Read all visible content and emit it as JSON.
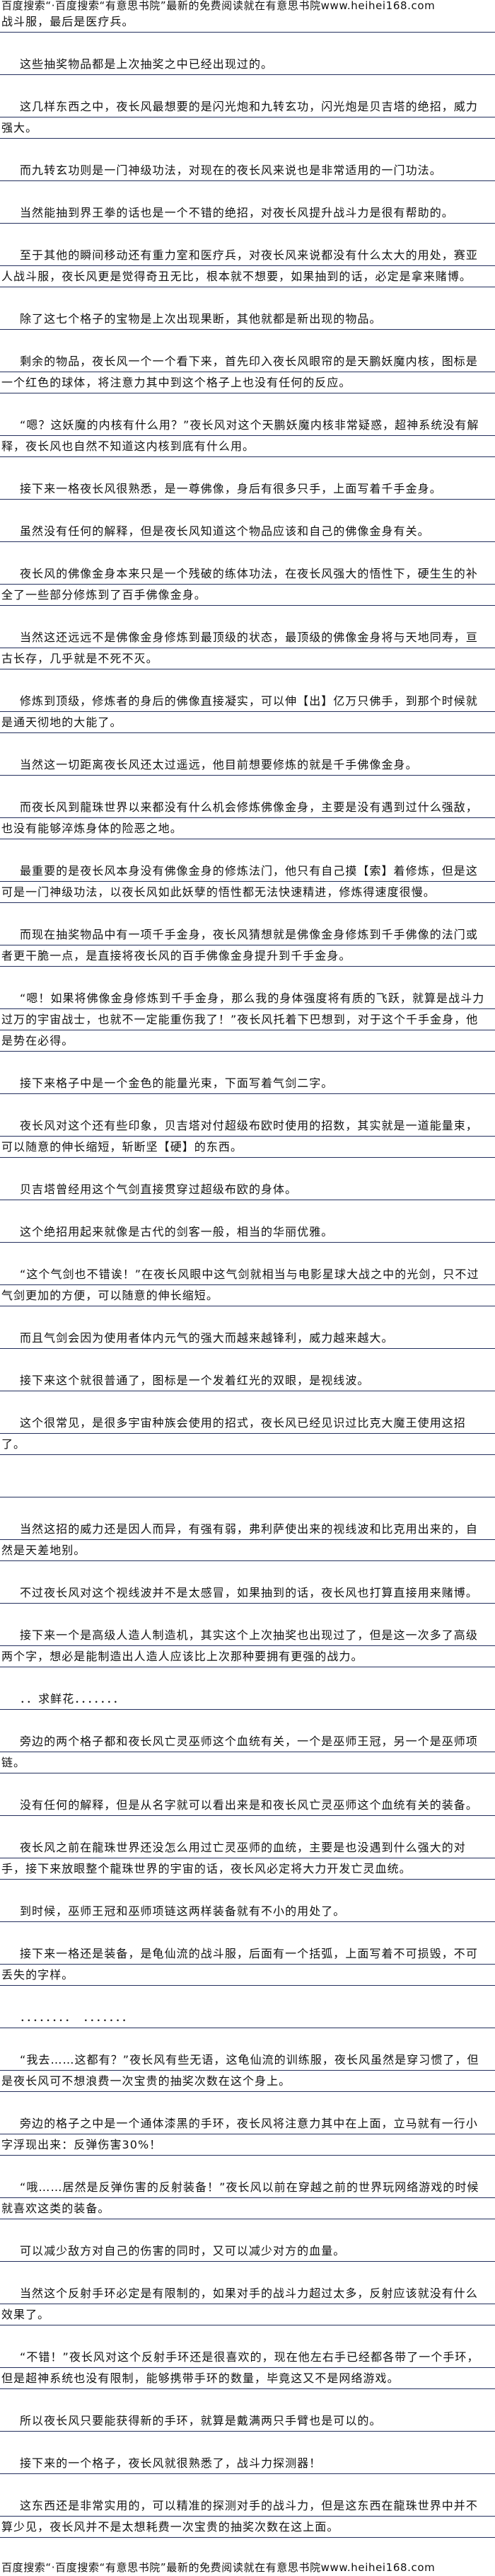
{
  "banner_top": "百度搜索“·百度搜索“有意思书院”最新的免费阅读就在有意思书院www.heihei168.com",
  "banner_bottom": "百度搜索“·百度搜索“有意思书院”最新的免费阅读就在有意思书院www.heihei168.com",
  "paragraphs": [
    "战斗服，最后是医疗兵。",
    "这些抽奖物品都是上次抽奖之中已经出现过的。",
    "这几样东西之中，夜长风最想要的是闪光炮和九转玄功，闪光炮是贝吉塔的绝招，威力强大。",
    "而九转玄功则是一门神级功法，对现在的夜长风来说也是非常适用的一门功法。",
    "当然能抽到界王拳的话也是一个不错的绝招，对夜长风提升战斗力是很有帮助的。",
    "至于其他的瞬间移动还有重力室和医疗兵，对夜长风来说都没有什么太大的用处，赛亚人战斗服，夜长风更是觉得奇丑无比，根本就不想要，如果抽到的话，必定是拿来赌博。",
    "除了这七个格子的宝物是上次出现果断，其他就都是新出现的物品。",
    "剩余的物品，夜长风一个一个看下来，首先印入夜长风眼帘的是天鹏妖魔内核，图标是一个红色的球体，将注意力其中到这个格子上也没有任何的反应。",
    "“嗯？这妖魔的内核有什么用？”夜长风对这个天鹏妖魔内核非常疑惑，超神系统没有解释，夜长风也自然不知道这内核到底有什么用。",
    "接下来一格夜长风很熟悉，是一尊佛像，身后有很多只手，上面写着千手金身。",
    "虽然没有任何的解释，但是夜长风知道这个物品应该和自己的佛像金身有关。",
    "夜长风的佛像金身本来只是一个残破的练体功法，在夜长风强大的悟性下，硬生生的补全了一些部分修炼到了百手佛像金身。",
    "当然这还远远不是佛像金身修炼到最顶级的状态，最顶级的佛像金身将与天地同寿，亘古长存，几乎就是不死不灭。",
    "修炼到顶级，修炼者的身后的佛像直接凝实，可以伸【出】亿万只佛手，到那个时候就是通天彻地的大能了。",
    "当然这一切距离夜长风还太过遥远，他目前想要修炼的就是千手佛像金身。",
    "而夜长风到龍珠世界以来都没有什么机会修炼佛像金身，主要是没有遇到过什么强敌，也没有能够淬炼身体的险恶之地。",
    "最重要的是夜长风本身没有佛像金身的修炼法门，他只有自己摸【索】着修炼，但是这可是一门神级功法，以夜长风如此妖孽的悟性都无法快速精进，修炼得速度很慢。",
    "而现在抽奖物品中有一项千手金身，夜长风猜想就是佛像金身修炼到千手佛像的法门或者更干脆一点，是直接将夜长风的百手佛像金身提升到千手金身。",
    "“嗯！如果将佛像金身修炼到千手金身，那么我的身体强度将有质的飞跃，就算是战斗力过万的宇宙战士，也就不一定能重伤我了！”夜长风托着下巴想到，对于这个千手金身，他是势在必得。",
    "接下来格子中是一个金色的能量光束，下面写着气剑二字。",
    "夜长风对这个还有些印象，贝吉塔对付超级布欧时使用的招数，其实就是一道能量束，可以随意的伸长缩短，斩断坚【硬】的东西。",
    "贝吉塔曾经用这个气剑直接贯穿过超级布欧的身体。",
    "这个绝招用起来就像是古代的剑客一般，相当的华丽优雅。",
    "“这个气剑也不错诶！”在夜长风眼中这气剑就相当与电影星球大战之中的光剑，只不过气剑更加的方便，可以随意的伸长缩短。",
    "而且气剑会因为使用者体内元气的强大而越来越锋利，威力越来越大。",
    "接下来这个就很普通了，图标是一个发着红光的双眼，是视线波。",
    "这个很常见，是很多宇宙种族会使用的招式，夜长风已经见识过比克大魔王使用这招了。",
    "",
    "当然这招的威力还是因人而异，有强有弱，弗利萨使出来的视线波和比克用出来的，自然是天差地别。",
    "不过夜长风对这个视线波并不是太感冒，如果抽到的话，夜长风也打算直接用来赌博。",
    "接下来一个是高级人造人制造机，其实这个上次抽奖也出现过了，但是这一次多了高级两个字，想必是能制造出人造人应该比上次那种要拥有更强的战力。",
    "．．求鲜花．．．．．．．",
    "旁边的两个格子都和夜长风亡灵巫师这个血统有关，一个是巫师王冠，另一个是巫师项链。",
    "没有任何的解释，但是从名字就可以看出来是和夜长风亡灵巫师这个血统有关的装备。",
    "夜长风之前在龍珠世界还没怎么用过亡灵巫师的血统，主要是也没遇到什么强大的对手，接下来放眼整个龍珠世界的宇宙的话，夜长风必定将大力开发亡灵血统。",
    "到时候，巫师王冠和巫师项链这两样装备就有不小的用处了。",
    "接下来一格还是装备，是龟仙流的战斗服，后面有一个括弧，上面写着不可损毁，不可丢失的字样。",
    "．．．．．．．．　．．．．．．．",
    "“我去……这都有？”夜长风有些无语，这龟仙流的训练服，夜长风虽然是穿习惯了，但是夜长风可不想浪费一次宝贵的抽奖次数在这个身上。",
    "旁边的格子之中是一个通体漆黑的手环，夜长风将注意力其中在上面，立马就有一行小字浮现出来：反弹伤害30%！",
    "“哦……居然是反弹伤害的反射装备！”夜长风以前在穿越之前的世界玩网络游戏的时候就喜欢这类的装备。",
    "可以减少敌方对自己的伤害的同时，又可以减少对方的血量。",
    "当然这个反射手环必定是有限制的，如果对手的战斗力超过太多，反射应该就没有什么效果了。",
    "“不错！”夜长风对这个反射手环还是很喜欢的，现在他左右手已经都各带了一个手环，但是超神系统也没有限制，能够携带手环的数量，毕竟这又不是网络游戏。",
    "所以夜长风只要能获得新的手环，就算是戴满两只手臂也是可以的。",
    "接下来的一个格子，夜长风就很熟悉了，战斗力探测器！",
    "这东西还是非常实用的，可以精准的探测对手的战斗力，但是这东西在龍珠世界中并不算少见，夜长风并不是太想耗费一次宝贵的抽奖次数在这上面。"
  ],
  "colors": {
    "text": "#111111",
    "rule": "#24305e",
    "background": "#ffffff"
  }
}
